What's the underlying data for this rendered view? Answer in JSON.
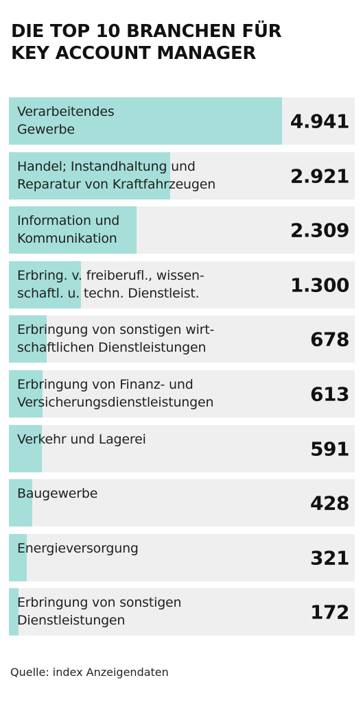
{
  "title_lines": [
    "DIE TOP 10 BRANCHEN FÜR",
    "KEY ACCOUNT MANAGER"
  ],
  "source": "Quelle: index Anzeigendaten",
  "colors": {
    "bar": "#a6dfd9",
    "track": "#efefef",
    "text": "#111111"
  },
  "chart_data": {
    "type": "bar",
    "orientation": "horizontal",
    "title": "DIE TOP 10 BRANCHEN FÜR KEY ACCOUNT MANAGER",
    "categories": [
      "Verarbeitendes\nGewerbe",
      "Handel; Instandhaltung und\nReparatur von Kraftfahrzeugen",
      "Information und\nKommunikation",
      "Erbring. v. freiberufl., wissen-\nschaftl. u. techn. Dienstleist.",
      "Erbringung von sonstigen wirt-\nschaftlichen Dienstleistungen",
      "Erbringung von Finanz- und\nVersicherungsdienstleistungen",
      "Verkehr und Lagerei",
      "Baugewerbe",
      "Energieversorgung",
      "Erbringung von sonstigen\nDienstleistungen"
    ],
    "values": [
      4941,
      2921,
      2309,
      1300,
      678,
      613,
      591,
      428,
      321,
      172
    ],
    "value_labels": [
      "4.941",
      "2.921",
      "2.309",
      "1.300",
      "678",
      "613",
      "591",
      "428",
      "321",
      "172"
    ],
    "xlim": [
      0,
      4941
    ],
    "grid": false,
    "legend": "none"
  }
}
